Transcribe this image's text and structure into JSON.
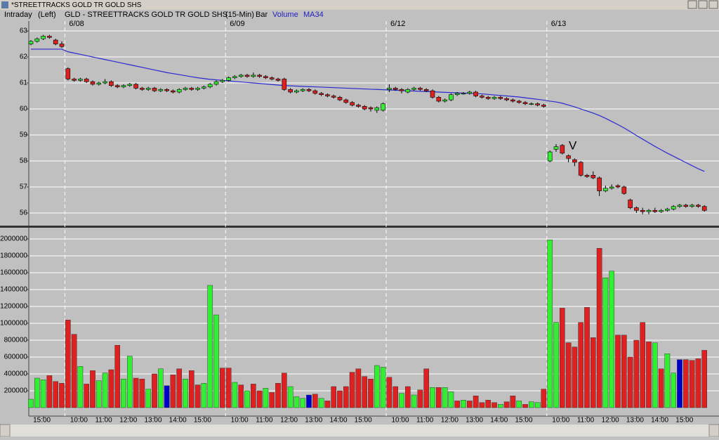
{
  "window": {
    "title": "*STREETTRACKS GOLD TR GOLD SHS",
    "header": [
      "Intraday",
      "(Left)",
      "GLD - STREETTRACKS GOLD TR GOLD SHS",
      "(15-Min)",
      "Bar"
    ]
  },
  "chart_data": [
    {
      "type": "candlestick",
      "up_color": "#33ee33",
      "down_color": "#dd2020",
      "ylim": [
        55.54,
        63.38
      ],
      "yticks": [
        56,
        57,
        58,
        59,
        60,
        61,
        62,
        63
      ],
      "grid": true,
      "date_labels": [
        "6/08",
        "6/09",
        "6/12",
        "6/13"
      ],
      "annotations": [
        "V"
      ],
      "ohlc": [
        [
          62.5,
          62.65,
          62.45,
          62.6
        ],
        [
          62.6,
          62.75,
          62.55,
          62.7
        ],
        [
          62.7,
          62.85,
          62.65,
          62.8
        ],
        [
          62.8,
          62.85,
          62.7,
          62.75
        ],
        [
          62.65,
          62.7,
          62.45,
          62.5
        ],
        [
          62.5,
          62.6,
          62.35,
          62.4
        ],
        [
          61.55,
          61.6,
          61.1,
          61.15
        ],
        [
          61.15,
          61.2,
          61.05,
          61.1
        ],
        [
          61.1,
          61.2,
          61.05,
          61.15
        ],
        [
          61.15,
          61.2,
          61.0,
          61.05
        ],
        [
          61.05,
          61.1,
          60.9,
          60.95
        ],
        [
          60.95,
          61.05,
          60.9,
          61.0
        ],
        [
          61.0,
          61.15,
          60.95,
          61.05
        ],
        [
          61.05,
          61.1,
          60.85,
          60.9
        ],
        [
          60.9,
          60.95,
          60.8,
          60.85
        ],
        [
          60.85,
          60.95,
          60.8,
          60.9
        ],
        [
          60.9,
          61.0,
          60.85,
          60.95
        ],
        [
          60.95,
          61.0,
          60.75,
          60.8
        ],
        [
          60.8,
          60.85,
          60.7,
          60.75
        ],
        [
          60.75,
          60.85,
          60.7,
          60.8
        ],
        [
          60.8,
          60.85,
          60.65,
          60.7
        ],
        [
          60.7,
          60.8,
          60.65,
          60.75
        ],
        [
          60.75,
          60.8,
          60.65,
          60.7
        ],
        [
          60.7,
          60.75,
          60.6,
          60.65
        ],
        [
          60.65,
          60.8,
          60.6,
          60.75
        ],
        [
          60.75,
          60.85,
          60.7,
          60.8
        ],
        [
          60.8,
          60.85,
          60.7,
          60.75
        ],
        [
          60.75,
          60.85,
          60.7,
          60.8
        ],
        [
          60.8,
          60.9,
          60.75,
          60.85
        ],
        [
          60.85,
          61.0,
          60.8,
          60.95
        ],
        [
          60.95,
          61.1,
          60.9,
          61.05
        ],
        [
          61.05,
          61.15,
          61.0,
          61.1
        ],
        [
          61.1,
          61.25,
          61.05,
          61.2
        ],
        [
          61.2,
          61.3,
          61.15,
          61.25
        ],
        [
          61.25,
          61.35,
          61.2,
          61.3
        ],
        [
          61.3,
          61.35,
          61.2,
          61.25
        ],
        [
          61.25,
          61.4,
          61.2,
          61.3
        ],
        [
          61.3,
          61.35,
          61.2,
          61.25
        ],
        [
          61.25,
          61.3,
          61.15,
          61.2
        ],
        [
          61.2,
          61.25,
          61.1,
          61.15
        ],
        [
          61.15,
          61.2,
          61.05,
          61.1
        ],
        [
          61.15,
          61.2,
          60.7,
          60.75
        ],
        [
          60.75,
          60.8,
          60.6,
          60.65
        ],
        [
          60.65,
          60.75,
          60.6,
          60.7
        ],
        [
          60.7,
          60.8,
          60.65,
          60.75
        ],
        [
          60.75,
          60.8,
          60.65,
          60.7
        ],
        [
          60.7,
          60.75,
          60.55,
          60.6
        ],
        [
          60.6,
          60.65,
          60.5,
          60.55
        ],
        [
          60.55,
          60.6,
          60.45,
          60.5
        ],
        [
          60.5,
          60.55,
          60.4,
          60.45
        ],
        [
          60.45,
          60.5,
          60.3,
          60.35
        ],
        [
          60.35,
          60.4,
          60.2,
          60.25
        ],
        [
          60.25,
          60.3,
          60.1,
          60.15
        ],
        [
          60.15,
          60.2,
          60.05,
          60.1
        ],
        [
          60.1,
          60.15,
          59.95,
          60.0
        ],
        [
          60.05,
          60.1,
          59.9,
          60.0
        ],
        [
          59.95,
          60.1,
          59.85,
          60.05
        ],
        [
          59.95,
          60.25,
          59.9,
          60.2
        ],
        [
          60.75,
          60.95,
          60.65,
          60.8
        ],
        [
          60.8,
          60.85,
          60.7,
          60.75
        ],
        [
          60.75,
          60.8,
          60.6,
          60.7
        ],
        [
          60.65,
          60.8,
          60.6,
          60.75
        ],
        [
          60.75,
          60.85,
          60.7,
          60.8
        ],
        [
          60.8,
          60.85,
          60.7,
          60.75
        ],
        [
          60.75,
          60.8,
          60.65,
          60.7
        ],
        [
          60.7,
          60.75,
          60.4,
          60.45
        ],
        [
          60.45,
          60.5,
          60.25,
          60.3
        ],
        [
          60.3,
          60.4,
          60.25,
          60.35
        ],
        [
          60.35,
          60.6,
          60.3,
          60.55
        ],
        [
          60.55,
          60.65,
          60.5,
          60.6
        ],
        [
          60.6,
          60.65,
          60.55,
          60.6
        ],
        [
          60.6,
          60.7,
          60.55,
          60.65
        ],
        [
          60.65,
          60.7,
          60.45,
          60.5
        ],
        [
          60.5,
          60.55,
          60.4,
          60.45
        ],
        [
          60.45,
          60.5,
          60.35,
          60.4
        ],
        [
          60.4,
          60.5,
          60.35,
          60.45
        ],
        [
          60.45,
          60.5,
          60.35,
          60.4
        ],
        [
          60.4,
          60.45,
          60.3,
          60.35
        ],
        [
          60.35,
          60.4,
          60.25,
          60.3
        ],
        [
          60.3,
          60.35,
          60.2,
          60.25
        ],
        [
          60.25,
          60.3,
          60.15,
          60.2
        ],
        [
          60.2,
          60.25,
          60.15,
          60.2
        ],
        [
          60.2,
          60.25,
          60.1,
          60.15
        ],
        [
          60.15,
          60.2,
          60.05,
          60.1
        ],
        [
          58.0,
          58.4,
          57.95,
          58.35
        ],
        [
          58.45,
          58.65,
          58.35,
          58.55
        ],
        [
          58.6,
          58.65,
          58.25,
          58.3
        ],
        [
          58.2,
          58.25,
          57.95,
          58.1
        ],
        [
          58.05,
          58.1,
          57.8,
          57.95
        ],
        [
          57.95,
          58.0,
          57.4,
          57.45
        ],
        [
          57.45,
          57.5,
          57.35,
          57.4
        ],
        [
          57.45,
          57.6,
          57.3,
          57.35
        ],
        [
          57.35,
          57.4,
          56.65,
          56.85
        ],
        [
          56.85,
          57.05,
          56.8,
          56.95
        ],
        [
          56.95,
          57.1,
          56.9,
          57.0
        ],
        [
          57.05,
          57.1,
          56.95,
          57.0
        ],
        [
          57.0,
          57.05,
          56.7,
          56.75
        ],
        [
          56.5,
          56.55,
          56.15,
          56.2
        ],
        [
          56.2,
          56.25,
          56.0,
          56.1
        ],
        [
          56.1,
          56.2,
          55.95,
          56.05
        ],
        [
          56.05,
          56.15,
          55.95,
          56.1
        ],
        [
          56.1,
          56.2,
          56.0,
          56.05
        ],
        [
          56.05,
          56.15,
          56.0,
          56.1
        ],
        [
          56.1,
          56.2,
          56.05,
          56.15
        ],
        [
          56.15,
          56.3,
          56.1,
          56.25
        ],
        [
          56.25,
          56.35,
          56.2,
          56.3
        ],
        [
          56.3,
          56.35,
          56.2,
          56.25
        ],
        [
          56.25,
          56.35,
          56.2,
          56.3
        ],
        [
          56.3,
          56.35,
          56.2,
          56.25
        ],
        [
          56.25,
          56.3,
          56.05,
          56.1
        ]
      ],
      "series": [
        {
          "name": "MA34",
          "color": "#2a2ad0",
          "values": [
            62.3,
            62.3,
            62.3,
            62.3,
            62.3,
            62.3,
            62.2,
            62.15,
            62.1,
            62.05,
            62.0,
            61.95,
            61.9,
            61.85,
            61.8,
            61.75,
            61.7,
            61.65,
            61.6,
            61.55,
            61.5,
            61.45,
            61.4,
            61.36,
            61.32,
            61.28,
            61.24,
            61.2,
            61.17,
            61.14,
            61.12,
            61.1,
            61.08,
            61.06,
            61.04,
            61.02,
            61.0,
            60.98,
            60.96,
            60.94,
            60.92,
            60.9,
            60.89,
            60.88,
            60.87,
            60.86,
            60.85,
            60.84,
            60.83,
            60.82,
            60.81,
            60.8,
            60.79,
            60.78,
            60.77,
            60.76,
            60.75,
            60.74,
            60.73,
            60.72,
            60.71,
            60.7,
            60.69,
            60.68,
            60.67,
            60.66,
            60.65,
            60.64,
            60.63,
            60.62,
            60.61,
            60.6,
            60.59,
            60.58,
            60.56,
            60.54,
            60.52,
            60.5,
            60.48,
            60.46,
            60.43,
            60.4,
            60.37,
            60.34,
            60.3,
            60.27,
            60.22,
            60.15,
            60.08,
            60.0,
            59.92,
            59.84,
            59.75,
            59.64,
            59.52,
            59.4,
            59.27,
            59.13,
            58.98,
            58.84,
            58.7,
            58.56,
            58.43,
            58.3,
            58.18,
            58.06,
            57.94,
            57.82,
            57.7,
            57.6
          ]
        }
      ]
    },
    {
      "type": "bar",
      "title": "Volume",
      "ylim": [
        -100000,
        2100000
      ],
      "yticks": [
        200000,
        400000,
        600000,
        800000,
        1000000,
        1200000,
        1400000,
        1600000,
        1800000,
        2000000
      ],
      "grid": true,
      "categories": [
        null,
        null,
        "15:00",
        null,
        null,
        null,
        null,
        null,
        "10:00",
        null,
        null,
        null,
        "11:00",
        null,
        null,
        null,
        "12:00",
        null,
        null,
        null,
        "13:00",
        null,
        null,
        null,
        "14:00",
        null,
        null,
        null,
        "15:00",
        null,
        null,
        null,
        null,
        null,
        "10:00",
        null,
        null,
        null,
        "11:00",
        null,
        null,
        null,
        "12:00",
        null,
        null,
        null,
        "13:00",
        null,
        null,
        null,
        "14:00",
        null,
        null,
        null,
        "15:00",
        null,
        null,
        null,
        null,
        null,
        "10:00",
        null,
        null,
        null,
        "11:00",
        null,
        null,
        null,
        "12:00",
        null,
        null,
        null,
        "13:00",
        null,
        null,
        null,
        "14:00",
        null,
        null,
        null,
        "15:00",
        null,
        null,
        null,
        null,
        null,
        "10:00",
        null,
        null,
        null,
        "11:00",
        null,
        null,
        null,
        "12:00",
        null,
        null,
        null,
        "13:00",
        null,
        null,
        null,
        "14:00",
        null,
        null,
        null,
        "15:00",
        null,
        null,
        null
      ],
      "values": [
        100000,
        350000,
        330000,
        380000,
        310000,
        290000,
        1040000,
        870000,
        490000,
        280000,
        440000,
        320000,
        410000,
        450000,
        740000,
        340000,
        610000,
        350000,
        340000,
        220000,
        400000,
        460000,
        260000,
        390000,
        460000,
        340000,
        440000,
        270000,
        290000,
        1450000,
        1100000,
        470000,
        470000,
        300000,
        270000,
        200000,
        280000,
        200000,
        230000,
        180000,
        290000,
        410000,
        250000,
        130000,
        110000,
        150000,
        160000,
        110000,
        80000,
        250000,
        200000,
        250000,
        420000,
        460000,
        370000,
        340000,
        500000,
        480000,
        360000,
        250000,
        170000,
        250000,
        150000,
        210000,
        460000,
        240000,
        240000,
        240000,
        190000,
        80000,
        90000,
        80000,
        140000,
        60000,
        90000,
        60000,
        40000,
        70000,
        140000,
        80000,
        40000,
        70000,
        60000,
        220000,
        1990000,
        1010000,
        1180000,
        770000,
        720000,
        1010000,
        1190000,
        830000,
        1890000,
        1540000,
        1620000,
        860000,
        860000,
        600000,
        800000,
        1010000,
        780000,
        770000,
        460000,
        640000,
        410000,
        570000,
        570000,
        560000,
        580000,
        680000
      ],
      "colors": [
        "#33ee33",
        "#33ee33",
        "#33ee33",
        "#dd2020",
        "#dd2020",
        "#dd2020",
        "#dd2020",
        "#dd2020",
        "#33ee33",
        "#dd2020",
        "#dd2020",
        "#33ee33",
        "#33ee33",
        "#dd2020",
        "#dd2020",
        "#33ee33",
        "#33ee33",
        "#dd2020",
        "#dd2020",
        "#33ee33",
        "#dd2020",
        "#33ee33",
        "#0000cc",
        "#dd2020",
        "#dd2020",
        "#33ee33",
        "#dd2020",
        "#dd2020",
        "#33ee33",
        "#33ee33",
        "#33ee33",
        "#dd2020",
        "#dd2020",
        "#33ee33",
        "#dd2020",
        "#33ee33",
        "#dd2020",
        "#dd2020",
        "#33ee33",
        "#dd2020",
        "#dd2020",
        "#dd2020",
        "#33ee33",
        "#33ee33",
        "#33ee33",
        "#0000cc",
        "#dd2020",
        "#33ee33",
        "#dd2020",
        "#dd2020",
        "#dd2020",
        "#dd2020",
        "#dd2020",
        "#dd2020",
        "#dd2020",
        "#dd2020",
        "#33ee33",
        "#33ee33",
        "#dd2020",
        "#dd2020",
        "#33ee33",
        "#dd2020",
        "#33ee33",
        "#dd2020",
        "#dd2020",
        "#33ee33",
        "#dd2020",
        "#33ee33",
        "#33ee33",
        "#dd2020",
        "#33ee33",
        "#dd2020",
        "#dd2020",
        "#dd2020",
        "#dd2020",
        "#dd2020",
        "#33ee33",
        "#dd2020",
        "#dd2020",
        "#33ee33",
        "#dd2020",
        "#33ee33",
        "#33ee33",
        "#dd2020",
        "#33ee33",
        "#33ee33",
        "#dd2020",
        "#dd2020",
        "#dd2020",
        "#dd2020",
        "#dd2020",
        "#dd2020",
        "#dd2020",
        "#33ee33",
        "#33ee33",
        "#dd2020",
        "#dd2020",
        "#dd2020",
        "#dd2020",
        "#dd2020",
        "#dd2020",
        "#33ee33",
        "#dd2020",
        "#33ee33",
        "#33ee33",
        "#0000cc",
        "#dd2020",
        "#dd2020",
        "#dd2020",
        "#dd2020"
      ]
    }
  ]
}
